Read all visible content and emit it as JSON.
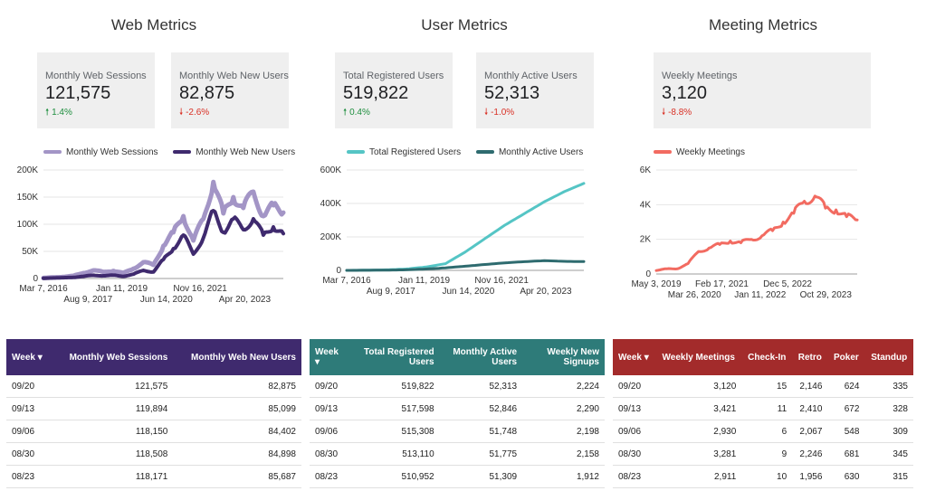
{
  "sections": [
    {
      "title": "Web Metrics",
      "kpis": [
        {
          "label": "Monthly Web Sessions",
          "value": "121,575",
          "change": "1.4%",
          "direction": "up"
        },
        {
          "label": "Monthly Web New Users",
          "value": "82,875",
          "change": "-2.6%",
          "direction": "down"
        }
      ]
    },
    {
      "title": "User Metrics",
      "kpis": [
        {
          "label": "Total Registered Users",
          "value": "519,822",
          "change": "0.4%",
          "direction": "up"
        },
        {
          "label": "Monthly Active Users",
          "value": "52,313",
          "change": "-1.0%",
          "direction": "down"
        }
      ]
    },
    {
      "title": "Meeting Metrics",
      "kpis": [
        {
          "label": "Weekly Meetings",
          "value": "3,120",
          "change": "-8.8%",
          "direction": "down"
        }
      ]
    }
  ],
  "icons": {
    "up": "arrow-up-icon",
    "down": "arrow-down-icon"
  },
  "colors": {
    "web_sessions": "#a395c6",
    "web_new_users": "#3f2a6e",
    "registered_users": "#55c5c5",
    "active_users": "#2e6b6f",
    "meetings": "#f26b61",
    "web_table_header": "#3f2a6e",
    "user_table_header": "#2e7b79",
    "meeting_table_header": "#a32b2b",
    "kpi_up": "#1e8e3e",
    "kpi_down": "#d93025"
  },
  "chart_data": [
    {
      "type": "line",
      "title": "",
      "x_tick_labels_row1": [
        "Mar 7, 2016",
        "Jan 11, 2019",
        "Nov 16, 2021"
      ],
      "x_tick_labels_row2": [
        "Aug 9, 2017",
        "Jun 14, 2020",
        "Apr 20, 2023"
      ],
      "y_tick_labels": [
        "0",
        "50K",
        "100K",
        "150K",
        "200K"
      ],
      "ylim": [
        0,
        200000
      ],
      "x": [
        "2016-03",
        "2016-09",
        "2017-03",
        "2017-08",
        "2018-03",
        "2018-09",
        "2019-01",
        "2019-06",
        "2019-12",
        "2020-03",
        "2020-06",
        "2020-09",
        "2020-12",
        "2021-03",
        "2021-06",
        "2021-09",
        "2021-11",
        "2022-02",
        "2022-05",
        "2022-08",
        "2022-11",
        "2023-02",
        "2023-04",
        "2023-07",
        "2023-09"
      ],
      "series": [
        {
          "name": "Monthly Web Sessions",
          "color_key": "web_sessions",
          "values": [
            1000,
            2000,
            3000,
            5000,
            10000,
            15000,
            12000,
            14000,
            10000,
            18000,
            30000,
            25000,
            60000,
            85000,
            115000,
            70000,
            110000,
            178000,
            120000,
            150000,
            130000,
            160000,
            115000,
            135000,
            121575
          ]
        },
        {
          "name": "Monthly Web New Users",
          "color_key": "web_new_users",
          "values": [
            500,
            1000,
            1500,
            2000,
            4000,
            6000,
            5000,
            6000,
            4000,
            8000,
            15000,
            12000,
            35000,
            55000,
            80000,
            45000,
            75000,
            125000,
            85000,
            110000,
            90000,
            110000,
            80000,
            95000,
            82875
          ]
        }
      ]
    },
    {
      "type": "line",
      "title": "",
      "x_tick_labels_row1": [
        "Mar 7, 2016",
        "Jan 11, 2019",
        "Nov 16, 2021"
      ],
      "x_tick_labels_row2": [
        "Aug 9, 2017",
        "Jun 14, 2020",
        "Apr 20, 2023"
      ],
      "y_tick_labels": [
        "0",
        "200K",
        "400K",
        "600K"
      ],
      "ylim": [
        0,
        600000
      ],
      "x": [
        "2016-03",
        "2017-03",
        "2018-03",
        "2019-01",
        "2019-12",
        "2020-06",
        "2020-12",
        "2021-06",
        "2021-11",
        "2022-06",
        "2022-12",
        "2023-04",
        "2023-09"
      ],
      "series": [
        {
          "name": "Total Registered Users",
          "color_key": "registered_users",
          "values": [
            0,
            1000,
            3000,
            8000,
            20000,
            40000,
            110000,
            190000,
            270000,
            340000,
            410000,
            470000,
            519822
          ]
        },
        {
          "name": "Monthly Active Users",
          "color_key": "active_users",
          "values": [
            0,
            500,
            1500,
            3000,
            8000,
            15000,
            25000,
            35000,
            45000,
            52000,
            58000,
            54000,
            52313
          ]
        }
      ]
    },
    {
      "type": "line",
      "title": "",
      "x_tick_labels_row1": [
        "May 3, 2019",
        "Feb 17, 2021",
        "Dec 5, 2022"
      ],
      "x_tick_labels_row2": [
        "Mar 26, 2020",
        "Jan 11, 2022",
        "Oct 29, 2023"
      ],
      "y_tick_labels": [
        "0",
        "2K",
        "4K",
        "6K"
      ],
      "ylim": [
        0,
        6000
      ],
      "x": [
        "2019-05",
        "2019-07",
        "2019-10",
        "2020-01",
        "2020-03",
        "2020-06",
        "2020-09",
        "2020-12",
        "2021-02",
        "2021-05",
        "2021-08",
        "2021-11",
        "2022-02",
        "2022-05",
        "2022-08",
        "2022-11",
        "2023-01",
        "2023-04",
        "2023-07",
        "2023-09"
      ],
      "series": [
        {
          "name": "Weekly Meetings",
          "color_key": "meetings",
          "values": [
            200,
            300,
            300,
            600,
            1300,
            1500,
            1700,
            1900,
            1800,
            2000,
            2200,
            2500,
            3000,
            3500,
            4200,
            4500,
            3800,
            3700,
            3300,
            3120
          ]
        }
      ]
    }
  ],
  "tables": {
    "web": {
      "headers": [
        "Week",
        "Monthly Web Sessions",
        "Monthly Web New Users"
      ],
      "rows": [
        [
          "09/20",
          "121,575",
          "82,875"
        ],
        [
          "09/13",
          "119,894",
          "85,099"
        ],
        [
          "09/06",
          "118,150",
          "84,402"
        ],
        [
          "08/30",
          "118,508",
          "84,898"
        ],
        [
          "08/23",
          "118,171",
          "85,687"
        ]
      ]
    },
    "users": {
      "headers": [
        "Week",
        "Total Registered Users",
        "Monthly Active Users",
        "Weekly New Signups"
      ],
      "rows": [
        [
          "09/20",
          "519,822",
          "52,313",
          "2,224"
        ],
        [
          "09/13",
          "517,598",
          "52,846",
          "2,290"
        ],
        [
          "09/06",
          "515,308",
          "51,748",
          "2,198"
        ],
        [
          "08/30",
          "513,110",
          "51,775",
          "2,158"
        ],
        [
          "08/23",
          "510,952",
          "51,309",
          "1,912"
        ]
      ]
    },
    "meetings": {
      "headers": [
        "Week",
        "Weekly Meetings",
        "Check-In",
        "Retro",
        "Poker",
        "Standup"
      ],
      "rows": [
        [
          "09/20",
          "3,120",
          "15",
          "2,146",
          "624",
          "335"
        ],
        [
          "09/13",
          "3,421",
          "11",
          "2,410",
          "672",
          "328"
        ],
        [
          "09/06",
          "2,930",
          "6",
          "2,067",
          "548",
          "309"
        ],
        [
          "08/30",
          "3,281",
          "9",
          "2,246",
          "681",
          "345"
        ],
        [
          "08/23",
          "2,911",
          "10",
          "1,956",
          "630",
          "315"
        ]
      ]
    },
    "sort_icon": "caret-down-icon"
  }
}
